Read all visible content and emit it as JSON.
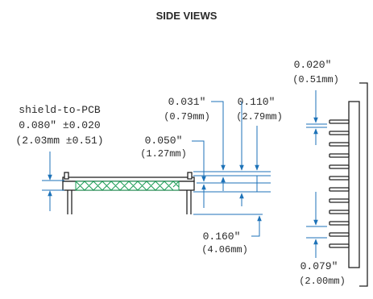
{
  "title": "SIDE VIEWS",
  "shield_to_pcb": {
    "label": "shield-to-PCB",
    "inch": "0.080″ ±0.020",
    "mm": "(2.03mm ±0.51)"
  },
  "dim_031": {
    "inch": "0.031″",
    "mm": "(0.79mm)"
  },
  "dim_110": {
    "inch": "0.110″",
    "mm": "(2.79mm)"
  },
  "dim_050": {
    "inch": "0.050″",
    "mm": "(1.27mm)"
  },
  "dim_160": {
    "inch": "0.160″",
    "mm": "(4.06mm)"
  },
  "dim_020": {
    "inch": "0.020″",
    "mm": "(0.51mm)"
  },
  "dim_079": {
    "inch": "0.079″",
    "mm": "(2.00mm)"
  },
  "colors": {
    "dimension": "#1d72b8",
    "shield_mesh": "#1a9b55",
    "outline": "#222222"
  }
}
